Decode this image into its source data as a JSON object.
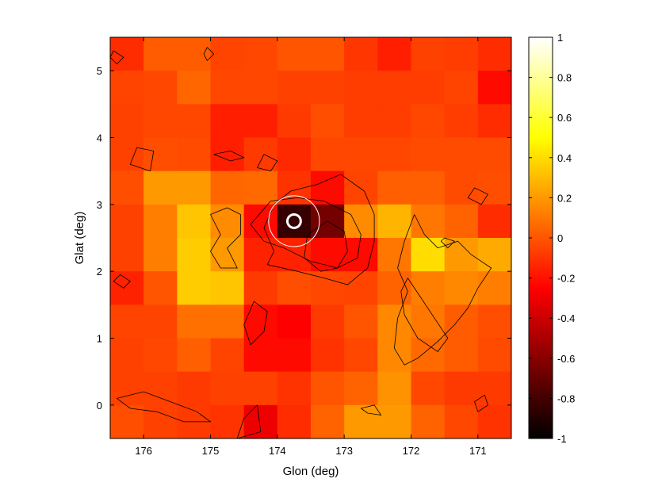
{
  "chart_data": {
    "type": "heatmap",
    "title": "",
    "xlabel": "Glon (deg)",
    "ylabel": "Glat (deg)",
    "xlim": [
      176.5,
      170.5
    ],
    "ylim": [
      -0.5,
      5.5
    ],
    "x_reversed": true,
    "grid": false,
    "xticks": [
      176,
      175,
      174,
      173,
      172,
      171
    ],
    "yticks": [
      0,
      1,
      2,
      3,
      4,
      5
    ],
    "x_tick_labels": [
      "176",
      "175",
      "174",
      "173",
      "172",
      "171"
    ],
    "y_tick_labels": [
      "0",
      "1",
      "2",
      "3",
      "4",
      "5"
    ],
    "pixel_size_deg": 0.5,
    "cell_x_centers": [
      176.25,
      175.75,
      175.25,
      174.75,
      174.25,
      173.75,
      173.25,
      172.75,
      172.25,
      171.75,
      171.25,
      170.75
    ],
    "cell_y_centers": [
      5.25,
      4.75,
      4.25,
      3.75,
      3.25,
      2.75,
      2.25,
      1.75,
      1.25,
      0.75,
      0.25,
      -0.25
    ],
    "values_note": "rows top to bottom (Glat 5.25 to -0.25), columns left to right (Glon 176.25 to 170.75)",
    "values": [
      [
        -0.12,
        0.02,
        0.02,
        -0.05,
        -0.04,
        0.0,
        0.0,
        -0.09,
        -0.16,
        -0.06,
        -0.07,
        -0.12
      ],
      [
        -0.05,
        -0.04,
        0.05,
        -0.04,
        -0.04,
        -0.06,
        -0.06,
        -0.07,
        -0.07,
        -0.07,
        -0.05,
        -0.22
      ],
      [
        -0.06,
        -0.04,
        -0.04,
        -0.16,
        -0.16,
        -0.08,
        -0.02,
        -0.07,
        -0.07,
        -0.04,
        -0.07,
        -0.12
      ],
      [
        -0.06,
        -0.02,
        -0.03,
        -0.16,
        -0.08,
        -0.13,
        -0.04,
        -0.04,
        -0.04,
        -0.03,
        -0.03,
        -0.03
      ],
      [
        -0.02,
        0.2,
        0.2,
        0.05,
        0.06,
        -0.1,
        -0.22,
        -0.05,
        0.03,
        0.03,
        -0.03,
        -0.02
      ],
      [
        -0.06,
        0.12,
        0.33,
        0.16,
        -0.22,
        -0.84,
        -0.66,
        0.16,
        0.28,
        0.1,
        0.04,
        -0.12
      ],
      [
        -0.06,
        0.12,
        0.35,
        0.2,
        -0.15,
        -0.15,
        -0.22,
        -0.22,
        0.1,
        0.4,
        0.2,
        0.25
      ],
      [
        -0.15,
        0.0,
        0.35,
        0.33,
        -0.08,
        -0.02,
        -0.04,
        -0.05,
        0.04,
        0.12,
        0.15,
        0.12
      ],
      [
        -0.05,
        -0.05,
        0.08,
        0.08,
        -0.22,
        -0.25,
        -0.08,
        0.0,
        0.15,
        0.1,
        0.02,
        -0.02
      ],
      [
        -0.06,
        -0.04,
        0.03,
        -0.05,
        -0.22,
        -0.22,
        -0.1,
        -0.04,
        0.15,
        0.06,
        0.02,
        -0.03
      ],
      [
        -0.06,
        -0.06,
        -0.08,
        -0.06,
        -0.06,
        -0.1,
        0.0,
        0.04,
        0.18,
        -0.04,
        -0.08,
        -0.08
      ],
      [
        -0.02,
        -0.06,
        -0.08,
        -0.1,
        -0.3,
        -0.12,
        0.04,
        0.2,
        0.2,
        0.04,
        -0.04,
        -0.1
      ]
    ],
    "colormap": "hot",
    "colorbar": {
      "range": [
        -1,
        1
      ],
      "placement": "right",
      "ticks": [
        -1,
        -0.8,
        -0.6,
        -0.4,
        -0.2,
        0,
        0.2,
        0.4,
        0.6,
        0.8,
        1
      ],
      "tick_labels": [
        "-1",
        "-0.8",
        "-0.6",
        "-0.4",
        "-0.2",
        "0",
        "0.2",
        "0.4",
        "0.6",
        "0.8",
        "1"
      ]
    },
    "markers": [
      {
        "type": "circle",
        "glon": 173.75,
        "glat": 2.75,
        "radius_deg": 0.1,
        "color": "#ffffff",
        "style": "thick"
      },
      {
        "type": "circle",
        "glon": 173.75,
        "glat": 2.75,
        "radius_deg": 0.38,
        "color": "#ffffff",
        "style": "thin"
      }
    ],
    "contours": [
      {
        "name": "central",
        "points": [
          [
            174.15,
            2.1
          ],
          [
            174.05,
            2.3
          ],
          [
            174.2,
            2.65
          ],
          [
            174.05,
            3.0
          ],
          [
            173.8,
            3.2
          ],
          [
            173.4,
            3.3
          ],
          [
            173.05,
            3.45
          ],
          [
            172.7,
            3.2
          ],
          [
            172.55,
            2.85
          ],
          [
            172.55,
            2.45
          ],
          [
            172.65,
            2.05
          ],
          [
            172.95,
            1.8
          ],
          [
            173.3,
            1.9
          ],
          [
            173.7,
            2.0
          ],
          [
            174.15,
            2.1
          ]
        ]
      },
      {
        "name": "central-inner",
        "points": [
          [
            174.4,
            2.7
          ],
          [
            174.1,
            3.05
          ],
          [
            173.7,
            3.1
          ],
          [
            173.3,
            3.05
          ],
          [
            172.9,
            2.85
          ],
          [
            172.75,
            2.55
          ],
          [
            172.8,
            2.2
          ],
          [
            173.1,
            2.05
          ],
          [
            173.5,
            2.15
          ],
          [
            173.9,
            2.35
          ],
          [
            174.2,
            2.45
          ],
          [
            174.4,
            2.7
          ]
        ]
      },
      {
        "name": "central-core",
        "points": [
          [
            173.6,
            2.2
          ],
          [
            173.35,
            2.0
          ],
          [
            173.1,
            2.05
          ],
          [
            172.95,
            2.3
          ],
          [
            173.0,
            2.6
          ],
          [
            173.25,
            2.75
          ],
          [
            173.55,
            2.55
          ],
          [
            173.6,
            2.2
          ]
        ]
      },
      {
        "name": "left-west",
        "points": [
          [
            175.0,
            2.85
          ],
          [
            174.75,
            2.95
          ],
          [
            174.55,
            2.85
          ],
          [
            174.55,
            2.55
          ],
          [
            174.75,
            2.35
          ],
          [
            174.6,
            2.05
          ],
          [
            174.85,
            2.05
          ],
          [
            175.0,
            2.3
          ],
          [
            174.85,
            2.55
          ],
          [
            175.0,
            2.85
          ]
        ]
      },
      {
        "name": "east-band",
        "points": [
          [
            171.95,
            2.85
          ],
          [
            171.8,
            2.55
          ],
          [
            171.6,
            2.35
          ],
          [
            171.3,
            2.45
          ],
          [
            171.1,
            2.25
          ],
          [
            170.8,
            2.05
          ],
          [
            171.0,
            1.75
          ],
          [
            171.15,
            1.45
          ],
          [
            171.35,
            1.2
          ],
          [
            171.6,
            0.95
          ],
          [
            171.9,
            0.7
          ],
          [
            172.1,
            0.6
          ],
          [
            172.25,
            0.85
          ],
          [
            172.2,
            1.3
          ],
          [
            172.05,
            1.7
          ],
          [
            172.2,
            2.05
          ],
          [
            172.1,
            2.45
          ],
          [
            171.95,
            2.85
          ]
        ]
      },
      {
        "name": "east-inner",
        "points": [
          [
            172.05,
            1.9
          ],
          [
            171.85,
            1.6
          ],
          [
            171.65,
            1.3
          ],
          [
            171.45,
            1.0
          ],
          [
            171.6,
            0.8
          ],
          [
            171.9,
            1.0
          ],
          [
            172.1,
            1.35
          ],
          [
            172.15,
            1.7
          ],
          [
            172.05,
            1.9
          ]
        ]
      },
      {
        "name": "north-left",
        "points": [
          [
            175.9,
            3.5
          ],
          [
            176.2,
            3.6
          ],
          [
            176.1,
            3.85
          ],
          [
            175.85,
            3.8
          ],
          [
            175.9,
            3.5
          ]
        ]
      },
      {
        "name": "north-mid",
        "points": [
          [
            174.95,
            3.75
          ],
          [
            174.7,
            3.8
          ],
          [
            174.5,
            3.7
          ],
          [
            174.7,
            3.65
          ],
          [
            174.95,
            3.75
          ]
        ]
      },
      {
        "name": "north-mid-2",
        "points": [
          [
            174.2,
            3.75
          ],
          [
            174.0,
            3.65
          ],
          [
            174.1,
            3.5
          ],
          [
            174.3,
            3.55
          ],
          [
            174.2,
            3.75
          ]
        ]
      },
      {
        "name": "northeast-blob",
        "points": [
          [
            171.05,
            3.25
          ],
          [
            170.85,
            3.15
          ],
          [
            170.95,
            3.0
          ],
          [
            171.15,
            3.1
          ],
          [
            171.05,
            3.25
          ]
        ]
      },
      {
        "name": "east-small",
        "points": [
          [
            171.5,
            2.5
          ],
          [
            171.35,
            2.45
          ],
          [
            171.45,
            2.35
          ],
          [
            171.55,
            2.45
          ],
          [
            171.5,
            2.5
          ]
        ]
      },
      {
        "name": "west-small",
        "points": [
          [
            176.35,
            1.95
          ],
          [
            176.2,
            1.85
          ],
          [
            176.3,
            1.75
          ],
          [
            176.45,
            1.85
          ],
          [
            176.35,
            1.95
          ]
        ]
      },
      {
        "name": "south-left",
        "points": [
          [
            176.4,
            0.1
          ],
          [
            176.0,
            0.2
          ],
          [
            175.6,
            0.05
          ],
          [
            175.2,
            -0.1
          ],
          [
            175.0,
            -0.25
          ],
          [
            175.4,
            -0.25
          ],
          [
            175.8,
            -0.1
          ],
          [
            176.2,
            -0.05
          ],
          [
            176.4,
            0.1
          ]
        ]
      },
      {
        "name": "south-mid",
        "points": [
          [
            174.3,
            0.0
          ],
          [
            174.5,
            -0.2
          ],
          [
            174.6,
            -0.5
          ],
          [
            174.25,
            -0.4
          ],
          [
            174.3,
            0.0
          ]
        ]
      },
      {
        "name": "south-center",
        "points": [
          [
            172.75,
            -0.05
          ],
          [
            172.55,
            0.0
          ],
          [
            172.45,
            -0.15
          ],
          [
            172.65,
            -0.12
          ],
          [
            172.75,
            -0.05
          ]
        ]
      },
      {
        "name": "middle-small",
        "points": [
          [
            174.4,
            0.9
          ],
          [
            174.2,
            1.1
          ],
          [
            174.15,
            1.4
          ],
          [
            174.35,
            1.55
          ],
          [
            174.5,
            1.2
          ],
          [
            174.4,
            0.9
          ]
        ]
      },
      {
        "name": "southeast-small",
        "points": [
          [
            171.0,
            -0.1
          ],
          [
            170.85,
            0.0
          ],
          [
            170.9,
            0.15
          ],
          [
            171.05,
            0.05
          ],
          [
            171.0,
            -0.1
          ]
        ]
      },
      {
        "name": "top-small",
        "points": [
          [
            175.05,
            5.35
          ],
          [
            174.95,
            5.25
          ],
          [
            175.05,
            5.15
          ],
          [
            175.1,
            5.25
          ],
          [
            175.05,
            5.35
          ]
        ]
      },
      {
        "name": "top-left-corner",
        "points": [
          [
            176.45,
            5.3
          ],
          [
            176.3,
            5.2
          ],
          [
            176.4,
            5.1
          ],
          [
            176.5,
            5.2
          ],
          [
            176.45,
            5.3
          ]
        ]
      }
    ]
  }
}
